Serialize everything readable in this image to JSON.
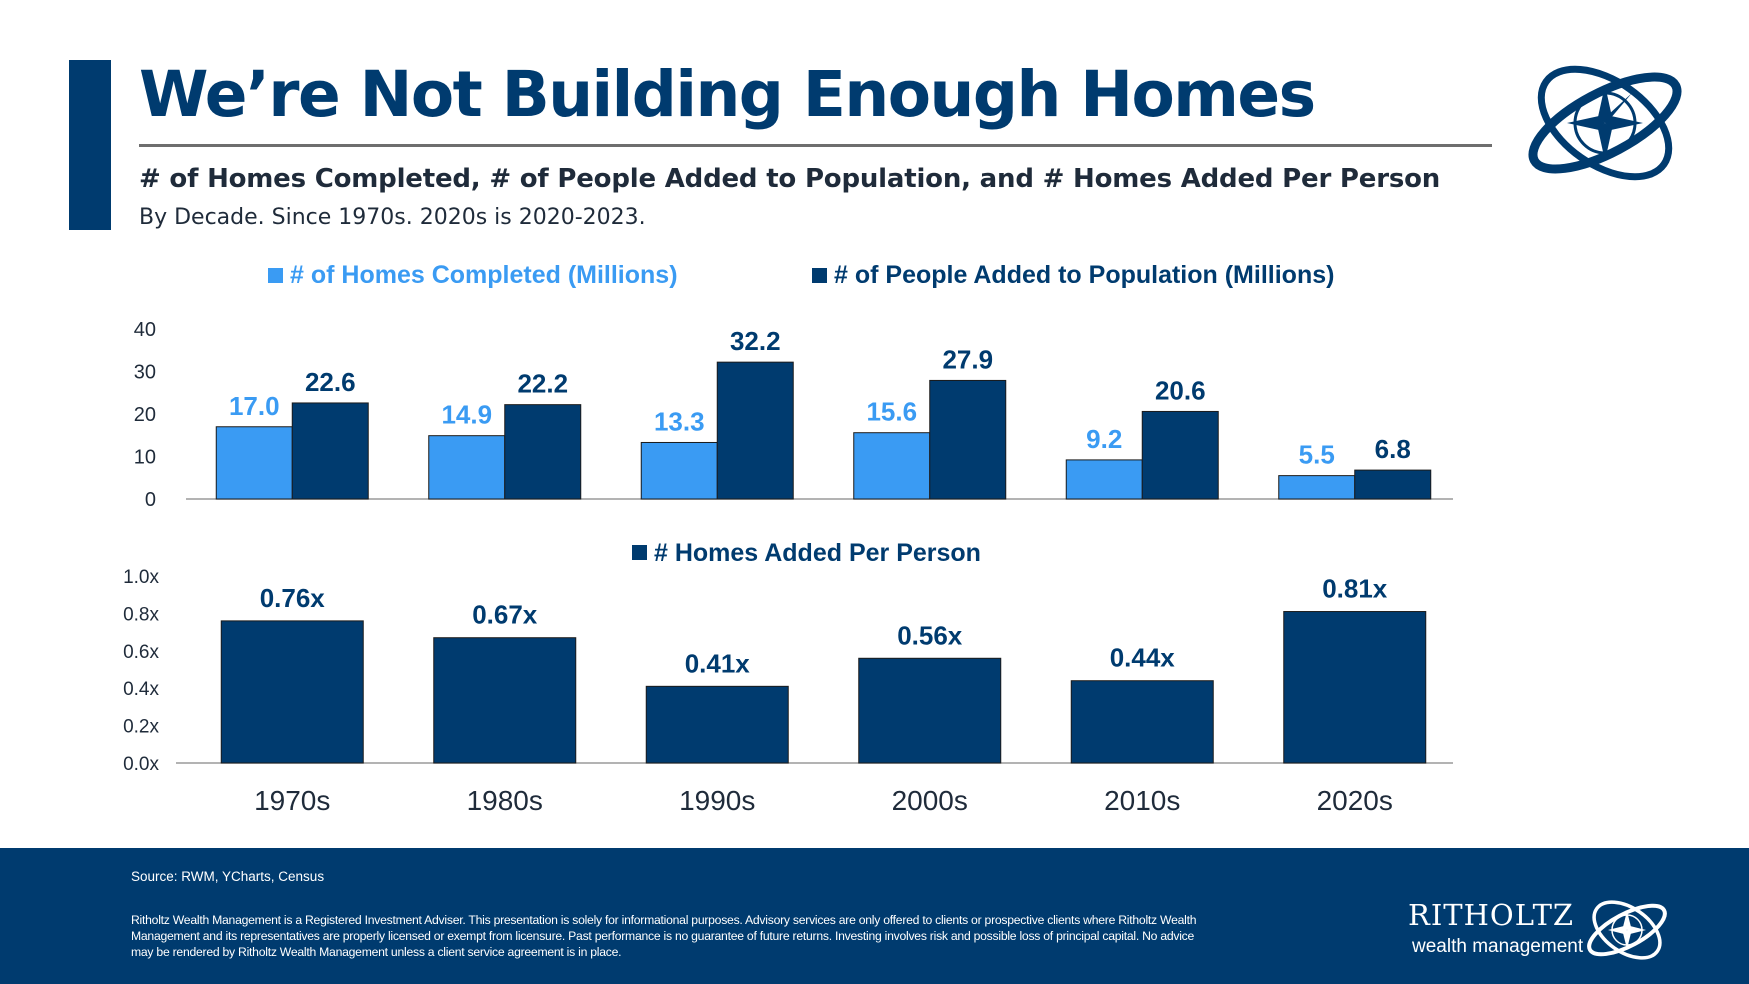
{
  "header": {
    "title": "We’re Not Building Enough Homes",
    "subtitle": "# of Homes Completed, # of People Added to Population, and # Homes Added Per Person",
    "note": "By Decade. Since 1970s. 2020s is 2020-2023."
  },
  "colors": {
    "navy": "#003B6F",
    "light_blue": "#3A9BF3",
    "label_light_blue": "#3A9BF3",
    "text_dark": "#1F2B3A"
  },
  "icons": {
    "logo": "compass-rings-logo-icon"
  },
  "chart_data": [
    {
      "type": "bar",
      "categories": [
        "1970s",
        "1980s",
        "1990s",
        "2000s",
        "2010s",
        "2020s"
      ],
      "series": [
        {
          "name": "# of Homes Completed (Millions)",
          "values": [
            17.0,
            14.9,
            13.3,
            15.6,
            9.2,
            5.5
          ],
          "color": "#3A9BF3",
          "labels": [
            "17.0",
            "14.9",
            "13.3",
            "15.6",
            "9.2",
            "5.5"
          ]
        },
        {
          "name": "# of People Added to Population (Millions)",
          "values": [
            22.6,
            22.2,
            32.2,
            27.9,
            20.6,
            6.8
          ],
          "color": "#003B6F",
          "labels": [
            "22.6",
            "22.2",
            "32.2",
            "27.9",
            "20.6",
            "6.8"
          ]
        }
      ],
      "yticks": [
        "0",
        "10",
        "20",
        "30",
        "40"
      ],
      "ylim": [
        0,
        40
      ],
      "legend_position": "top",
      "grid": false
    },
    {
      "type": "bar",
      "categories": [
        "1970s",
        "1980s",
        "1990s",
        "2000s",
        "2010s",
        "2020s"
      ],
      "series": [
        {
          "name": "# Homes Added Per Person",
          "values": [
            0.76,
            0.67,
            0.41,
            0.56,
            0.44,
            0.81
          ],
          "color": "#003B6F",
          "labels": [
            "0.76x",
            "0.67x",
            "0.41x",
            "0.56x",
            "0.44x",
            "0.81x"
          ]
        }
      ],
      "yticks": [
        "0.0x",
        "0.2x",
        "0.4x",
        "0.6x",
        "0.8x",
        "1.0x"
      ],
      "ylim": [
        0,
        1.0
      ],
      "legend_position": "top",
      "grid": false
    }
  ],
  "footer": {
    "source": "Source: RWM, YCharts, Census",
    "disclaimer": "Ritholtz Wealth Management is a Registered Investment Adviser. This presentation is solely for informational purposes. Advisory services are only offered to clients or prospective clients where Ritholtz Wealth Management and its representatives are properly licensed or exempt from licensure. Past performance is no guarantee of future returns. Investing involves risk and possible loss of principal capital. No advice may be rendered by Ritholtz Wealth Management unless a client service agreement is in place.",
    "brand_name": "RITHOLTZ",
    "brand_sub": "wealth management"
  }
}
